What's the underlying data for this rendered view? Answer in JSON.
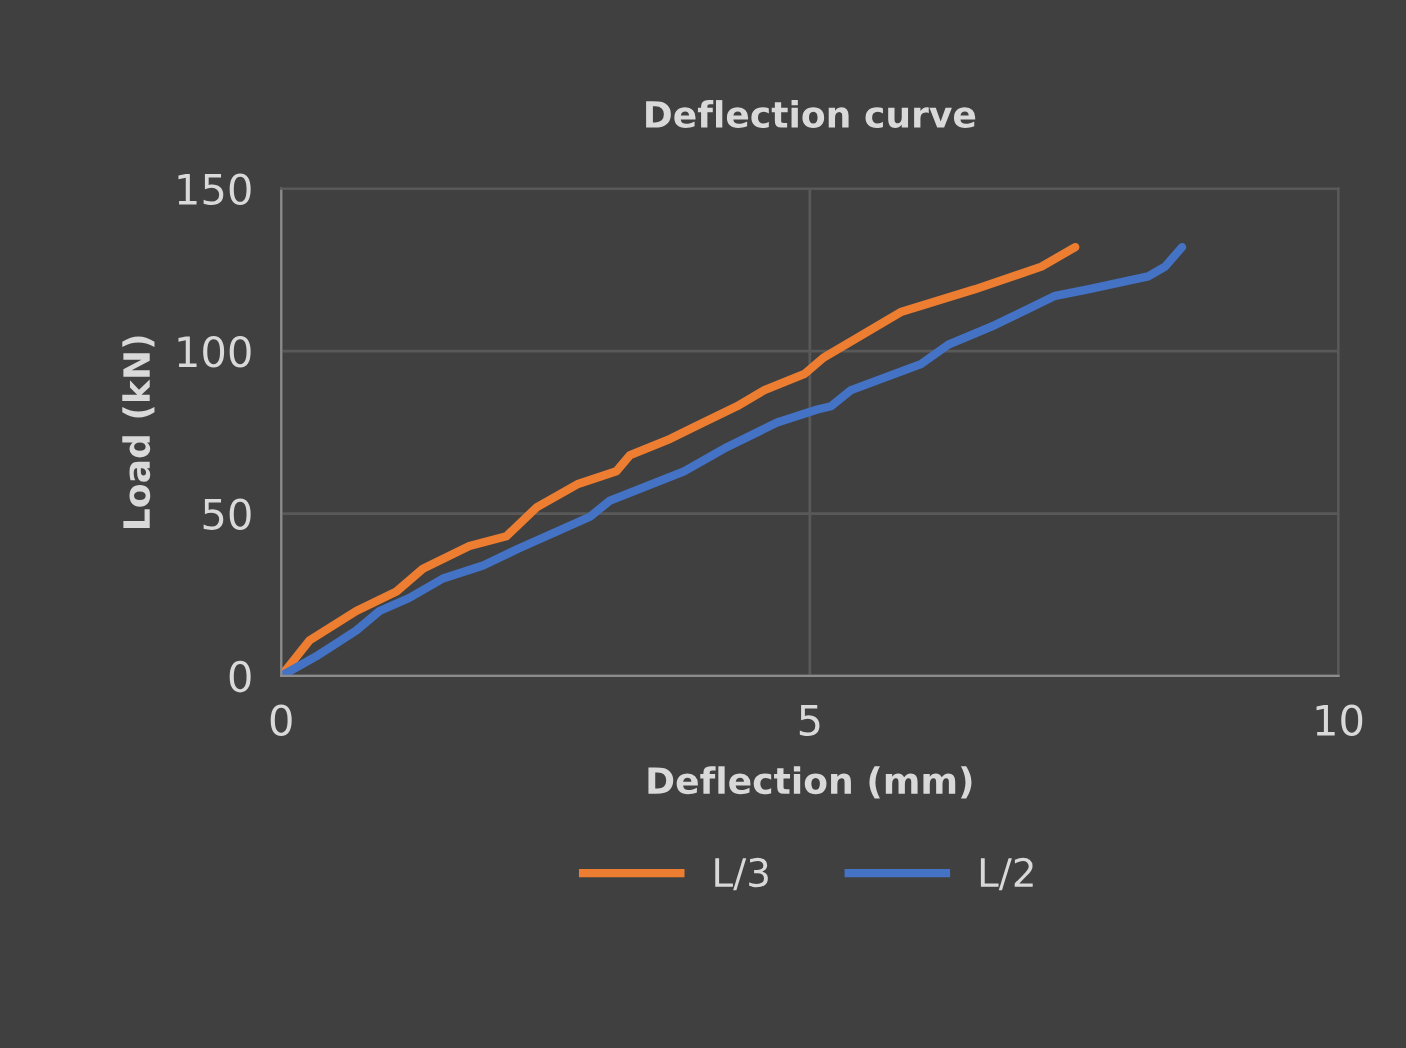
{
  "chart_data": {
    "type": "line",
    "title": "Deflection curve",
    "xlabel": "Deflection (mm)",
    "ylabel": "Load (kN)",
    "xlim": [
      0,
      10
    ],
    "xticks": [
      0,
      5,
      10
    ],
    "ylim": [
      0,
      150
    ],
    "yticks": [
      0,
      50,
      100,
      150
    ],
    "grid": true,
    "legend": "bottom",
    "line_style": "solid",
    "series": [
      {
        "name": "L/3",
        "color": "#ed7d31",
        "x": [
          0,
          0.27,
          0.71,
          1.09,
          1.34,
          1.78,
          2.13,
          2.42,
          2.8,
          3.17,
          3.3,
          3.68,
          3.93,
          4.31,
          4.57,
          4.95,
          5.13,
          5.86,
          6.56,
          7.19,
          7.51
        ],
        "values": [
          0,
          11,
          20,
          26,
          33,
          40,
          43,
          52,
          59,
          63,
          68,
          73,
          77,
          83,
          88,
          93,
          98,
          112,
          119,
          126,
          132
        ]
      },
      {
        "name": "L/2",
        "color": "#4472c4",
        "x": [
          0,
          0.33,
          0.71,
          0.93,
          1.21,
          1.53,
          1.91,
          2.23,
          2.92,
          3.11,
          3.81,
          4.19,
          4.69,
          5.07,
          5.2,
          5.39,
          6.05,
          6.31,
          6.75,
          7.32,
          7.63,
          8.2,
          8.36,
          8.52
        ],
        "values": [
          0,
          6,
          14,
          20,
          24,
          30,
          34,
          39,
          49,
          54,
          63,
          70,
          78,
          82,
          83,
          88,
          96,
          102,
          108,
          117,
          119,
          123,
          126,
          132
        ]
      }
    ]
  }
}
